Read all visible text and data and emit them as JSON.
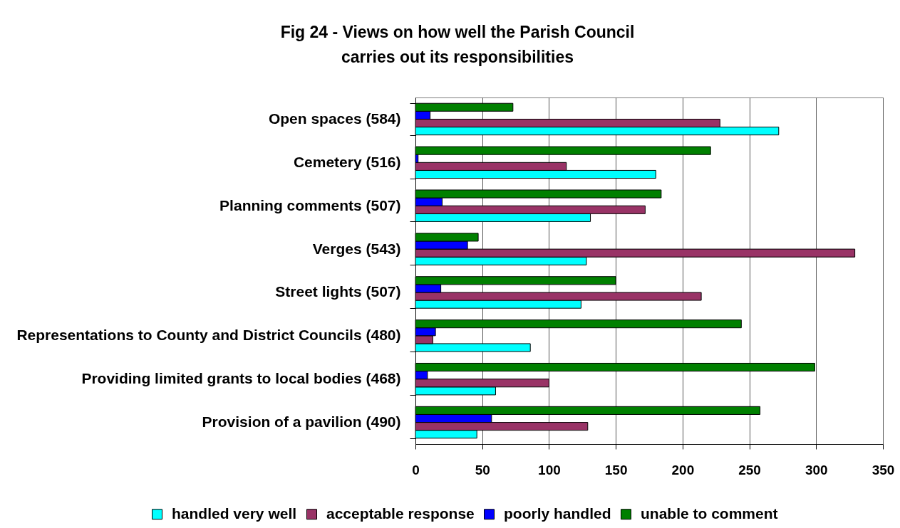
{
  "chart_data": {
    "type": "bar",
    "orientation": "horizontal",
    "title": "Fig 24 - Views on how well the Parish Council carries out its responsibilities",
    "categories": [
      "Open spaces (584)",
      "Cemetery (516)",
      "Planning comments (507)",
      "Verges (543)",
      "Street lights (507)",
      "Representations to County and District Councils (480)",
      "Providing limited grants to local bodies (468)",
      "Provision of a pavilion (490)"
    ],
    "series": [
      {
        "name": "handled very well",
        "color": "#00ffff",
        "values": [
          272,
          180,
          131,
          128,
          124,
          86,
          60,
          46
        ]
      },
      {
        "name": "acceptable response",
        "color": "#993366",
        "values": [
          228,
          113,
          172,
          329,
          214,
          13,
          100,
          129
        ]
      },
      {
        "name": "poorly handled",
        "color": "#0000ff",
        "values": [
          11,
          2,
          20,
          39,
          19,
          15,
          9,
          57
        ]
      },
      {
        "name": "unable to comment",
        "color": "#008000",
        "values": [
          73,
          221,
          184,
          47,
          150,
          244,
          299,
          258
        ]
      }
    ],
    "xlim": [
      0,
      350
    ],
    "xticks": [
      0,
      50,
      100,
      150,
      200,
      250,
      300,
      350
    ],
    "grid": "x",
    "legend": "bottom"
  }
}
